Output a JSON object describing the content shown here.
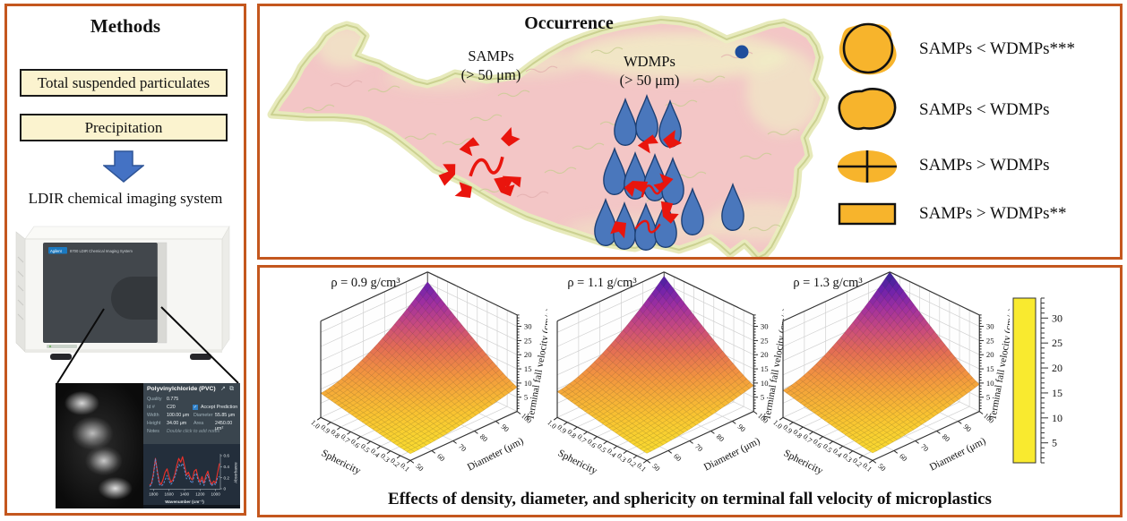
{
  "colors": {
    "panel_border": "#C4571E",
    "method_box_fill": "#FBF3CF",
    "arrow_blue": "#4472C4",
    "arrow_edge": "#2F5597",
    "map_pink": "#F3C6C6",
    "map_rim": "#DEE3AA",
    "raindrop_blue": "#4A77BC",
    "raindrop_edge": "#1C3F73",
    "red_particle": "#E9150D",
    "legend_yellow": "#F7B42C",
    "site_dot_blue": "#1F4E9C",
    "pvc_panel_bg": "#3A454E",
    "spectrum_bg": "#232E3B",
    "spectrum_red": "#E8312A",
    "spectrum_blue": "#5B8FD4"
  },
  "methods": {
    "title": "Methods",
    "boxes": [
      "Total suspended particulates",
      "Precipitation"
    ],
    "instrument_caption": "LDIR chemical imaging system",
    "instrument_brand": "Agilent",
    "instrument_model": "8700 LDIR Chemical Imaging System",
    "pvc": {
      "title": "Polyvinylchloride (PVC)",
      "quality_label": "Quality",
      "quality": "0.775",
      "id_label": "Id #",
      "id": "C20",
      "accept_label": "Accept Prediction",
      "accept_checked": "✓",
      "width_label": "Width",
      "width": "100.00 μm",
      "diameter_label": "Diameter",
      "diameter": "55.85 μm",
      "height_label": "Height",
      "height": "34.00 μm",
      "area_label": "Area",
      "area": "2450.00 μm²",
      "notes_label": "Notes",
      "notes": "Double click to add notes",
      "expand_icon": "↗",
      "open_icon": "⧉"
    }
  },
  "occurrence": {
    "title": "Occurrence",
    "samps_line1": "SAMPs",
    "samps_line2": "(> 50 μm)",
    "wdmps_line1": "WDMPs",
    "wdmps_line2": "(> 50 μm)",
    "legend": [
      {
        "shape": "circle-with-blob",
        "label": "SAMPs < WDMPs***"
      },
      {
        "shape": "irregular-blob",
        "label": "SAMPs < WDMPs"
      },
      {
        "shape": "ellipse-with-cross",
        "label": "SAMPs > WDMPs"
      },
      {
        "shape": "rectangle",
        "label": "SAMPs > WDMPs**"
      }
    ]
  },
  "velocity_caption": "Effects of density, diameter, and sphericity on terminal fall velocity of microplastics",
  "chart_data": [
    {
      "type": "surface",
      "title": "ρ = 0.9 g/cm³",
      "density_g_cm3": 0.9,
      "xlabel": "Sphericity",
      "x_ticks": [
        1.0,
        0.9,
        0.8,
        0.7,
        0.6,
        0.5,
        0.4,
        0.3,
        0.2,
        0.1
      ],
      "ylabel": "Diameter (μm)",
      "y_ticks": [
        50,
        60,
        70,
        80,
        90,
        100
      ],
      "zlabel": "Terminal fall velocity (cm/s)",
      "z_ticks": [
        5,
        10,
        15,
        20,
        25,
        30
      ],
      "zlim": [
        0,
        34
      ],
      "v_max": 30.5,
      "floor_fraction": 0.28,
      "shape_exponents": {
        "sphericity": 1.15,
        "diameter": 1.55
      },
      "approx_velocity_corners": {
        "d50_s0.1": 2.4,
        "d50_s1.0": 8.5,
        "d100_s0.1": 8.5,
        "d100_s1.0": 30.5
      }
    },
    {
      "type": "surface",
      "title": "ρ = 1.1 g/cm³",
      "density_g_cm3": 1.1,
      "xlabel": "Sphericity",
      "x_ticks": [
        1.0,
        0.9,
        0.8,
        0.7,
        0.6,
        0.5,
        0.4,
        0.3,
        0.2,
        0.1
      ],
      "ylabel": "Diameter (μm)",
      "y_ticks": [
        50,
        60,
        70,
        80,
        90,
        100
      ],
      "zlabel": "Terminal fall velocity (cm/s)",
      "z_ticks": [
        5,
        10,
        15,
        20,
        25,
        30
      ],
      "zlim": [
        0,
        34
      ],
      "v_max": 32.5,
      "floor_fraction": 0.28,
      "shape_exponents": {
        "sphericity": 1.15,
        "diameter": 1.55
      },
      "approx_velocity_corners": {
        "d50_s0.1": 2.5,
        "d50_s1.0": 9.1,
        "d100_s0.1": 9.1,
        "d100_s1.0": 32.5
      }
    },
    {
      "type": "surface",
      "title": "ρ = 1.3 g/cm³",
      "density_g_cm3": 1.3,
      "xlabel": "Sphericity",
      "x_ticks": [
        1.0,
        0.9,
        0.8,
        0.7,
        0.6,
        0.5,
        0.4,
        0.3,
        0.2,
        0.1
      ],
      "ylabel": "Diameter (μm)",
      "y_ticks": [
        50,
        60,
        70,
        80,
        90,
        100
      ],
      "zlabel": "Terminal fall velocity (cm/s)",
      "z_ticks": [
        5,
        10,
        15,
        20,
        25,
        30
      ],
      "zlim": [
        0,
        34
      ],
      "v_max": 34,
      "floor_fraction": 0.28,
      "shape_exponents": {
        "sphericity": 1.15,
        "diameter": 1.55
      },
      "approx_velocity_corners": {
        "d50_s0.1": 2.7,
        "d50_s1.0": 9.5,
        "d100_s0.1": 9.5,
        "d100_s1.0": 34
      }
    }
  ],
  "colorbar": {
    "ticks": [
      5,
      10,
      15,
      20,
      25,
      30
    ],
    "range": [
      1,
      34
    ],
    "stops": [
      {
        "t": 0,
        "c": "#F9EA2F"
      },
      {
        "t": 0.17,
        "c": "#F9C331"
      },
      {
        "t": 0.34,
        "c": "#F29340"
      },
      {
        "t": 0.48,
        "c": "#E36C55"
      },
      {
        "t": 0.62,
        "c": "#C84A7E"
      },
      {
        "t": 0.76,
        "c": "#9F2FA0"
      },
      {
        "t": 0.88,
        "c": "#6B21AC"
      },
      {
        "t": 1,
        "c": "#2E2590"
      }
    ]
  },
  "spectrum": {
    "type": "line",
    "xlabel": "Wavenumber (cm⁻¹)",
    "ylabel": "Absorbance",
    "x_ticks": [
      1800,
      1600,
      1400,
      1200,
      1000
    ],
    "y_ticks": [
      0,
      0.2,
      0.4,
      0.6
    ],
    "x_start": 1850,
    "x_end": 950,
    "series": [
      {
        "name": "series_red",
        "color": "#E8312A",
        "dashed": false,
        "values": [
          0.06,
          0.1,
          0.28,
          0.55,
          0.32,
          0.12,
          0.08,
          0.18,
          0.3,
          0.36,
          0.22,
          0.12,
          0.16,
          0.26,
          0.42,
          0.55,
          0.48,
          0.58,
          0.42,
          0.25,
          0.3,
          0.2,
          0.16,
          0.32,
          0.35,
          0.2,
          0.12,
          0.22,
          0.1,
          0.24,
          0.32,
          0.16,
          0.08,
          0.14,
          0.1,
          0.28,
          0.46
        ]
      },
      {
        "name": "series_blue",
        "color": "#5B8FD4",
        "dashed": true,
        "values": [
          0.04,
          0.08,
          0.24,
          0.54,
          0.28,
          0.08,
          0.05,
          0.08,
          0.16,
          0.24,
          0.14,
          0.08,
          0.12,
          0.22,
          0.34,
          0.44,
          0.4,
          0.46,
          0.34,
          0.18,
          0.24,
          0.14,
          0.1,
          0.24,
          0.28,
          0.15,
          0.08,
          0.16,
          0.06,
          0.18,
          0.26,
          0.12,
          0.05,
          0.1,
          0.07,
          0.2,
          0.22
        ]
      }
    ]
  }
}
